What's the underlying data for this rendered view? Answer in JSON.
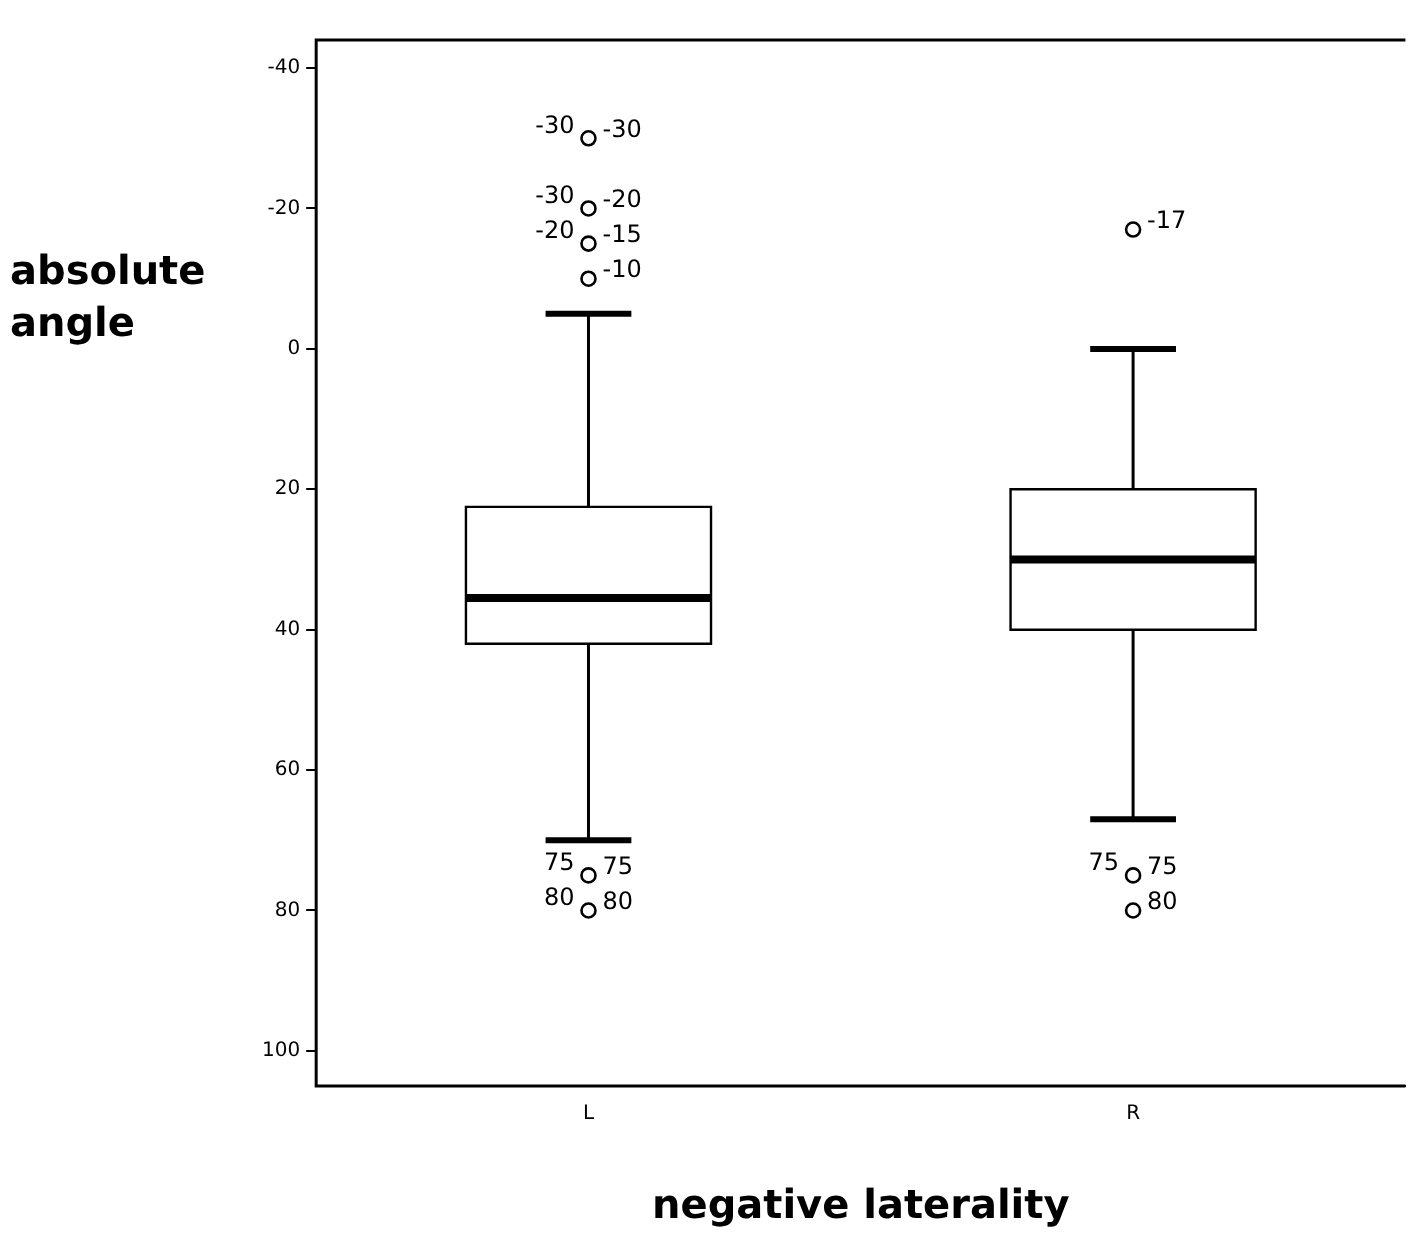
{
  "chart_data": {
    "type": "box",
    "xlabel": "negative laterality",
    "ylabel": "absolute angle",
    "categories": [
      "L",
      "R"
    ],
    "boxes": [
      {
        "low": -5,
        "q1": 22.5,
        "median": 35.5,
        "q3": 42,
        "high": 70,
        "outliers": [
          -30,
          -20,
          -15,
          -10,
          75,
          80
        ]
      },
      {
        "low": 0,
        "q1": 20,
        "median": 30,
        "q3": 40,
        "high": 67,
        "outliers": [
          -17,
          75,
          80
        ]
      }
    ],
    "ylim": [
      105,
      -44
    ],
    "yticks": [
      -40,
      -20,
      0,
      20,
      40,
      60,
      80,
      100
    ],
    "grid": false,
    "legend": false,
    "marker": "circle",
    "annotations": [
      "-30",
      "-30",
      "-30",
      "-20",
      "-20",
      "-15",
      "-10",
      "75",
      "75",
      "80",
      "80",
      "-17",
      "75",
      "75",
      "80"
    ]
  }
}
